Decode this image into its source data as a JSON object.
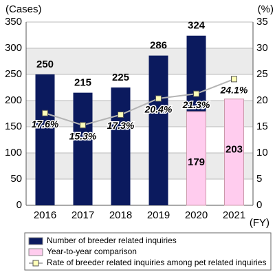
{
  "chart_data": {
    "type": "bar",
    "ylabel": "(Cases)",
    "y2label": "(%)",
    "xlabel": "(FY)",
    "categories": [
      "2016",
      "2017",
      "2018",
      "2019",
      "2020",
      "2021"
    ],
    "series": [
      {
        "name": "Number of breeder related inquiries",
        "color": "#0b1a5e",
        "values": [
          250,
          215,
          225,
          286,
          324,
          null
        ]
      },
      {
        "name": "Year-to-year comparison",
        "color": "#ffccee",
        "values": [
          null,
          null,
          null,
          null,
          179,
          203
        ]
      },
      {
        "name": "Rate of breeder related inquiries among pet related inquiries",
        "type": "line",
        "axis": "y2",
        "color": "#b4b4b4",
        "marker_color": "#ffffb8",
        "values": [
          17.6,
          15.3,
          17.3,
          20.4,
          21.3,
          24.1
        ],
        "value_labels": [
          "17.6%",
          "15.3%",
          "17.3%",
          "20.4%",
          "21.3%",
          "24.1%"
        ]
      }
    ],
    "ylim": [
      0,
      350
    ],
    "yticks": [
      0,
      50,
      100,
      150,
      200,
      250,
      300,
      350
    ],
    "y2lim": [
      0,
      35
    ],
    "y2ticks": [
      0,
      5,
      10,
      15,
      20,
      25,
      30,
      35
    ],
    "grid": true
  }
}
